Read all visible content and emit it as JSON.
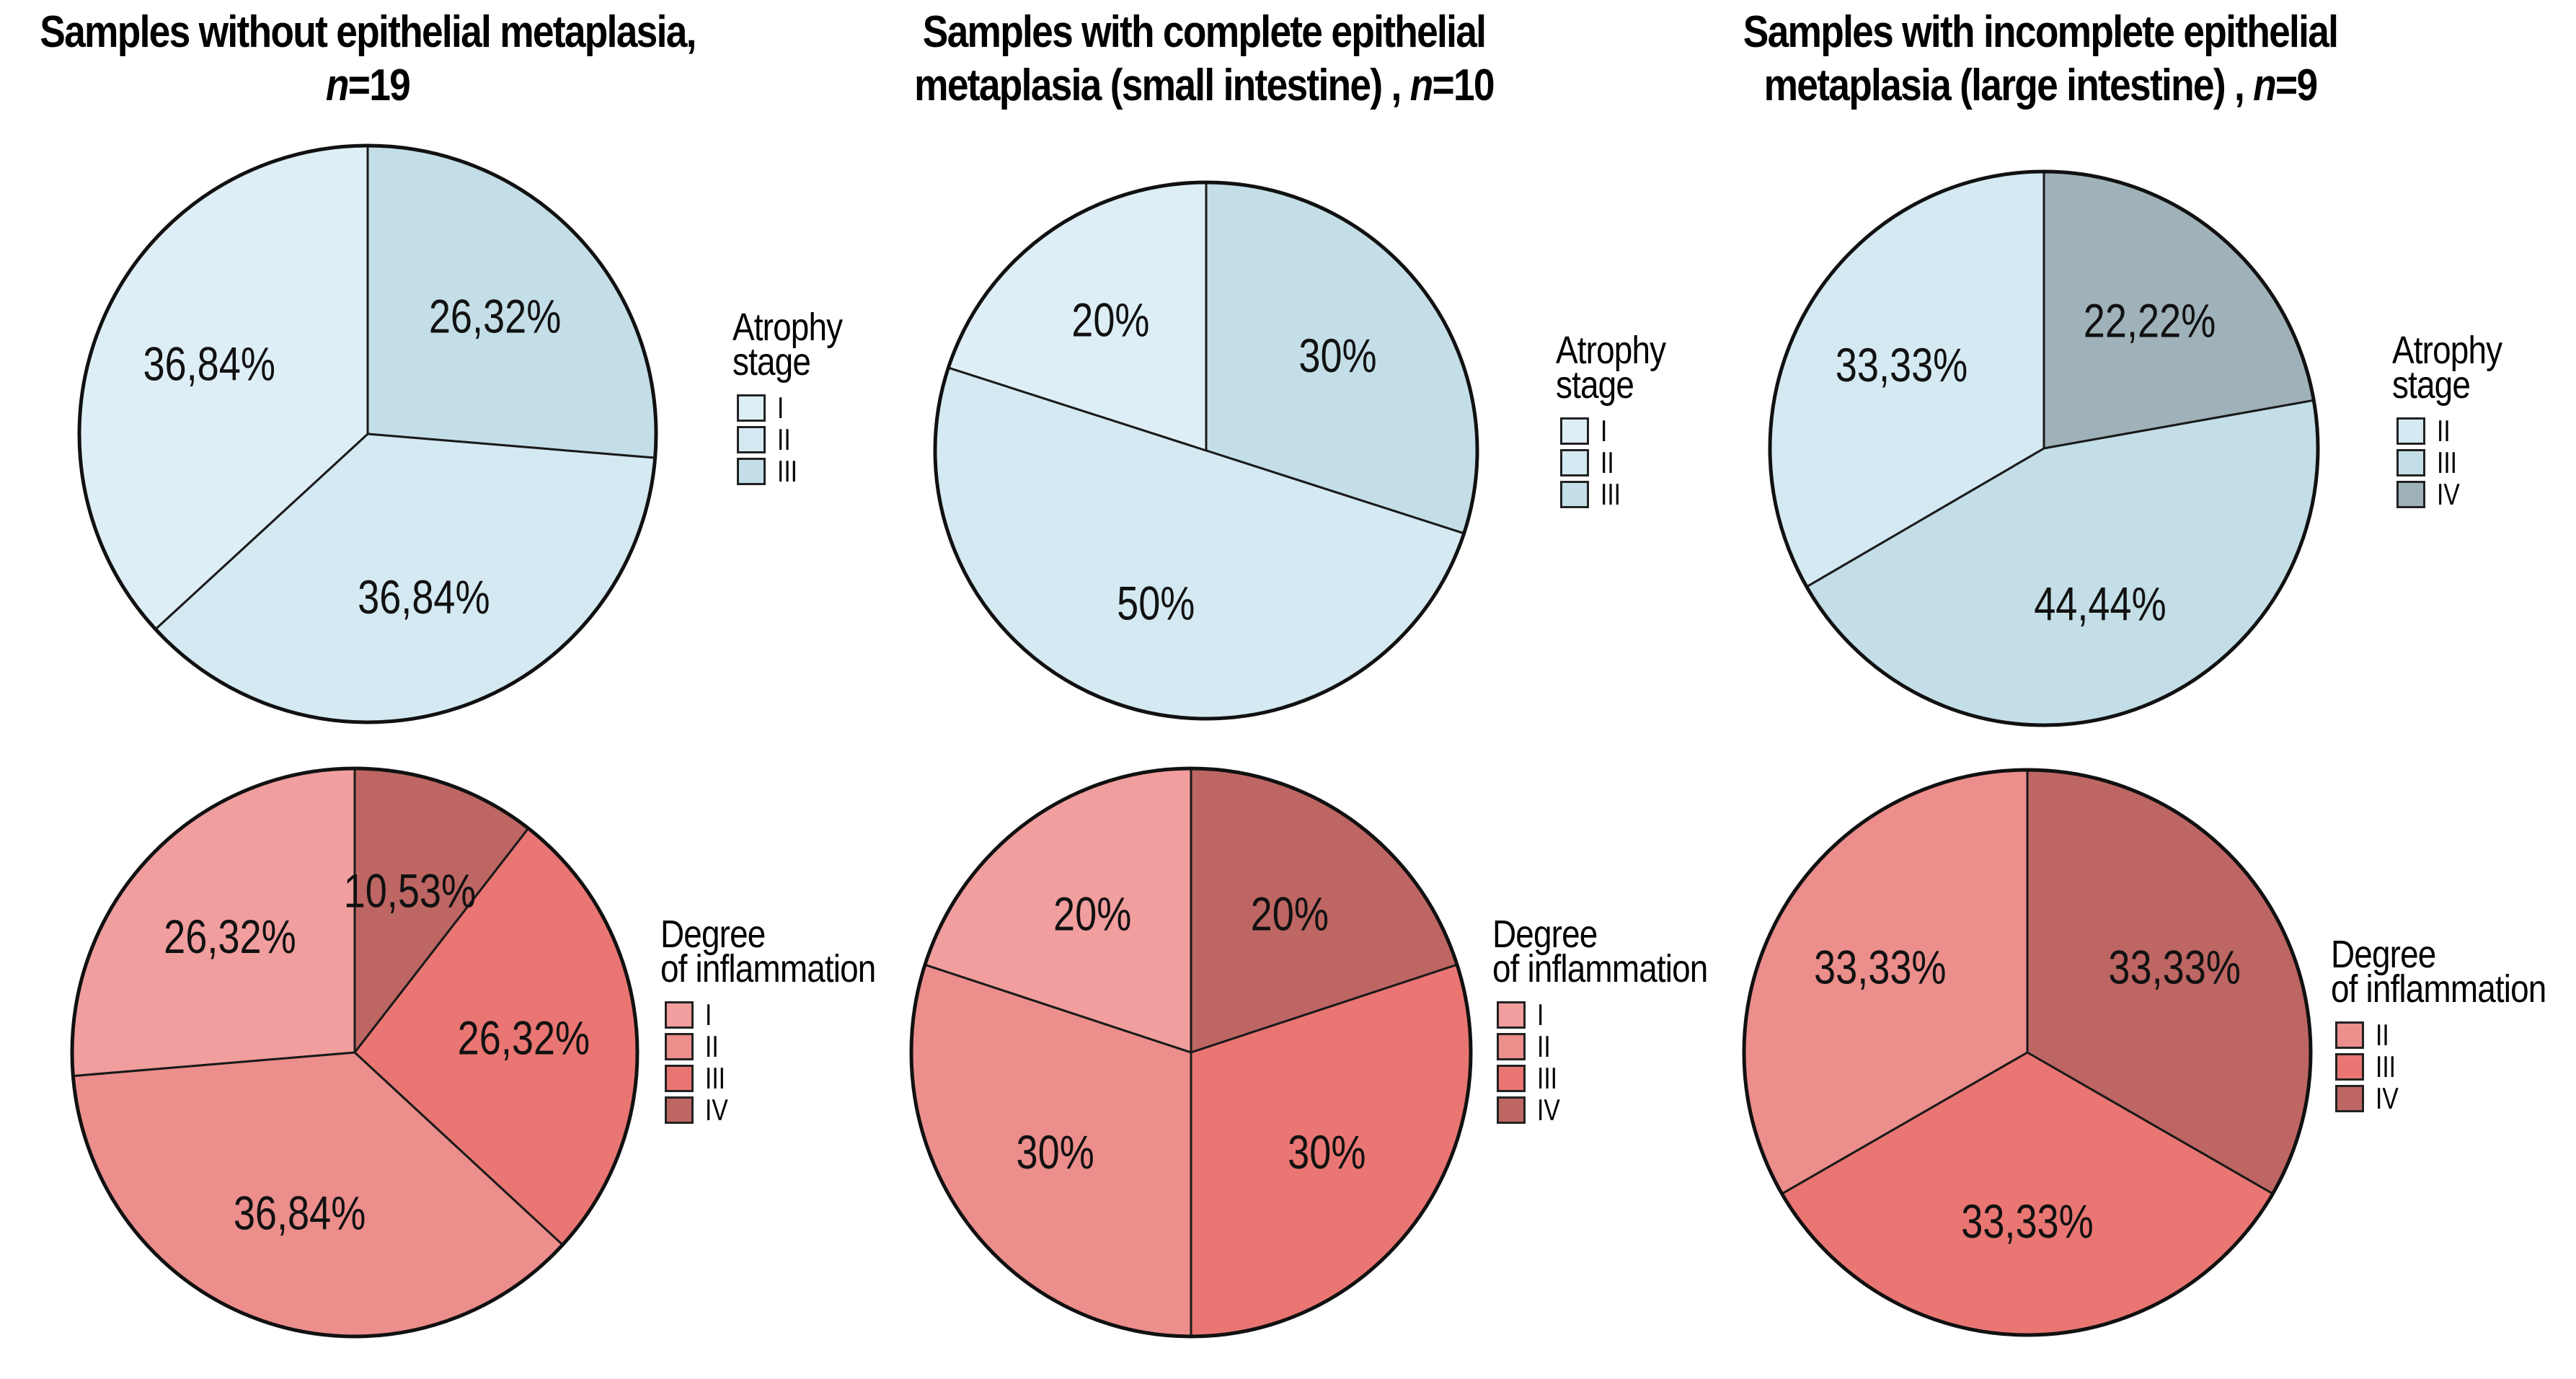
{
  "chart_data": [
    {
      "type": "pie",
      "id": "atrophy-no-metaplasia",
      "title": "Samples without epithelial metaplasia,",
      "n_label": "n",
      "n_value": "=19",
      "legend_title": [
        "Atrophy",
        "stage"
      ],
      "legend": [
        {
          "label": "I",
          "color": "#deeef6"
        },
        {
          "label": "II",
          "color": "#d4e9f2"
        },
        {
          "label": "III",
          "color": "#c3dee7"
        }
      ],
      "slices": [
        {
          "category": "III",
          "value": 26.32,
          "label": "26,32%",
          "color": "#c3dee7"
        },
        {
          "category": "II",
          "value": 36.84,
          "label": "36,84%",
          "color": "#d4e9f2"
        },
        {
          "category": "I",
          "value": 36.84,
          "label": "36,84%",
          "color": "#deeef6"
        }
      ]
    },
    {
      "type": "pie",
      "id": "atrophy-complete-metaplasia",
      "title": "Samples with complete epithelial metaplasia (small intestine) ,",
      "title_lines": [
        "Samples with complete epithelial",
        "metaplasia (small intestine) , "
      ],
      "n_label": "n",
      "n_value": "=10",
      "legend_title": [
        "Atrophy",
        "stage"
      ],
      "legend": [
        {
          "label": "I",
          "color": "#deeef6"
        },
        {
          "label": "II",
          "color": "#d4e9f2"
        },
        {
          "label": "III",
          "color": "#c3dee7"
        }
      ],
      "slices": [
        {
          "category": "III",
          "value": 30,
          "label": "30%",
          "color": "#c3dee7"
        },
        {
          "category": "II",
          "value": 50,
          "label": "50%",
          "color": "#d4e9f2"
        },
        {
          "category": "I",
          "value": 20,
          "label": "20%",
          "color": "#deeef6"
        }
      ]
    },
    {
      "type": "pie",
      "id": "atrophy-incomplete-metaplasia",
      "title": "Samples with incomplete epithelial metaplasia (large intestine) ,",
      "title_lines": [
        "Samples with incomplete epithelial",
        "metaplasia (large intestine) , "
      ],
      "n_label": "n",
      "n_value": "=9",
      "legend_title": [
        "Atrophy",
        "stage"
      ],
      "legend": [
        {
          "label": "II",
          "color": "#d4e9f2"
        },
        {
          "label": "III",
          "color": "#c3dee7"
        },
        {
          "label": "IV",
          "color": "#9fb1b9"
        }
      ],
      "slices": [
        {
          "category": "IV",
          "value": 22.22,
          "label": "22,22%",
          "color": "#9fb1b9"
        },
        {
          "category": "III",
          "value": 44.44,
          "label": "44,44%",
          "color": "#c3dee7"
        },
        {
          "category": "II",
          "value": 33.33,
          "label": "33,33%",
          "color": "#d4e9f2"
        }
      ]
    },
    {
      "type": "pie",
      "id": "inflammation-no-metaplasia",
      "title": "",
      "legend_title": [
        "Degree",
        "of inflammation"
      ],
      "legend": [
        {
          "label": "I",
          "color": "#f19e9e"
        },
        {
          "label": "II",
          "color": "#eb8e8c"
        },
        {
          "label": "III",
          "color": "#e97672"
        },
        {
          "label": "IV",
          "color": "#bd6663"
        }
      ],
      "slices": [
        {
          "category": "IV",
          "value": 10.53,
          "label": "10,53%",
          "color": "#bd6663"
        },
        {
          "category": "III",
          "value": 26.32,
          "label": "26,32%",
          "color": "#e97672"
        },
        {
          "category": "II",
          "value": 36.84,
          "label": "36,84%",
          "color": "#eb8e8c"
        },
        {
          "category": "I",
          "value": 26.32,
          "label": "26,32%",
          "color": "#f19e9e"
        }
      ]
    },
    {
      "type": "pie",
      "id": "inflammation-complete-metaplasia",
      "title": "",
      "legend_title": [
        "Degree",
        "of inflammation"
      ],
      "legend": [
        {
          "label": "I",
          "color": "#f19e9e"
        },
        {
          "label": "II",
          "color": "#eb8e8c"
        },
        {
          "label": "III",
          "color": "#e97672"
        },
        {
          "label": "IV",
          "color": "#bd6663"
        }
      ],
      "slices": [
        {
          "category": "IV",
          "value": 20,
          "label": "20%",
          "color": "#bd6663"
        },
        {
          "category": "III",
          "value": 30,
          "label": "30%",
          "color": "#e97672"
        },
        {
          "category": "II",
          "value": 30,
          "label": "30%",
          "color": "#eb8e8c"
        },
        {
          "category": "I",
          "value": 20,
          "label": "20%",
          "color": "#f19e9e"
        }
      ]
    },
    {
      "type": "pie",
      "id": "inflammation-incomplete-metaplasia",
      "title": "",
      "legend_title": [
        "Degree",
        "of inflammation"
      ],
      "legend": [
        {
          "label": "II",
          "color": "#eb8e8c"
        },
        {
          "label": "III",
          "color": "#e97672"
        },
        {
          "label": "IV",
          "color": "#bd6663"
        }
      ],
      "slices": [
        {
          "category": "IV",
          "value": 33.33,
          "label": "33,33%",
          "color": "#bd6663"
        },
        {
          "category": "III",
          "value": 33.33,
          "label": "33,33%",
          "color": "#e97672"
        },
        {
          "category": "II",
          "value": 33.33,
          "label": "33,33%",
          "color": "#eb8e8c"
        }
      ]
    }
  ],
  "titles": [
    {
      "line1": "Samples without epithelial metaplasia,",
      "line2_prefix": "",
      "n": "n",
      "n_value": "=19"
    },
    {
      "line1": "Samples with complete epithelial",
      "line2_prefix": "metaplasia (small intestine) , ",
      "n": "n",
      "n_value": "=10"
    },
    {
      "line1": "Samples with incomplete epithelial",
      "line2_prefix": "metaplasia (large intestine) , ",
      "n": "n",
      "n_value": "=9"
    }
  ]
}
